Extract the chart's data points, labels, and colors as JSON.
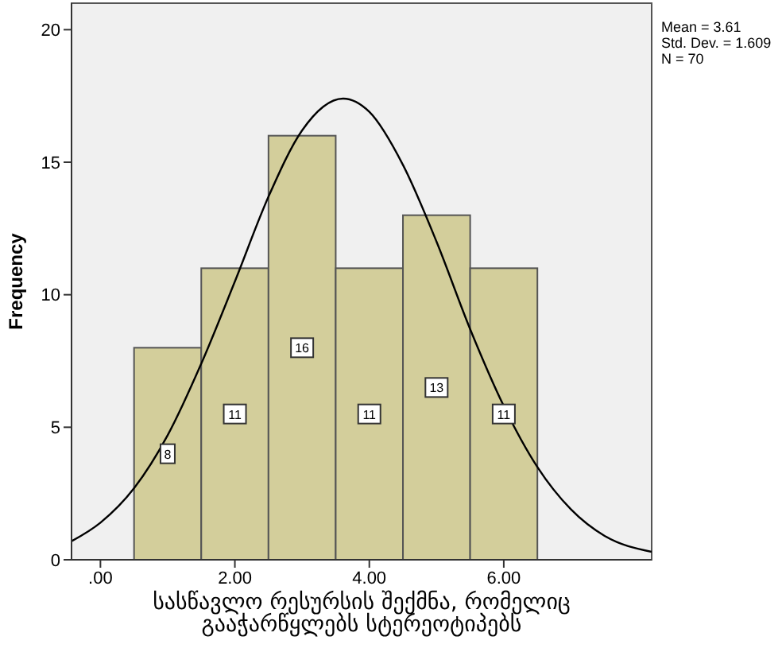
{
  "chart_data": {
    "type": "histogram",
    "xlabel": "სასწავლო რესურსის შექმნა, რომელიც გააჭარწყლებს სტერეოტიპებს",
    "ylabel": "Frequency",
    "bins": [
      0.5,
      1.5,
      2.5,
      3.5,
      4.5,
      5.5,
      6.5
    ],
    "values": [
      8,
      11,
      16,
      11,
      13,
      11
    ],
    "color": "#d3ce9b",
    "value_labels": [
      "8",
      "11",
      "16",
      "11",
      "13",
      "11"
    ],
    "series": [
      {
        "type": "line",
        "color": "#000000",
        "x": [
          -0.43,
          0,
          0.5,
          1,
          1.5,
          2,
          2.5,
          3,
          3.61,
          4,
          4.5,
          5,
          5.5,
          6,
          6.5,
          7,
          7.5,
          8.2
        ],
        "values": [
          0.7,
          1.4,
          2.7,
          4.7,
          7.4,
          10.5,
          13.7,
          16.2,
          17.4,
          16.9,
          14.9,
          12.0,
          8.7,
          5.8,
          3.5,
          1.9,
          0.9,
          0.3
        ]
      }
    ],
    "marker": "none",
    "xlim": [
      -0.43,
      8.2
    ],
    "xticks": [
      {
        "value": 0,
        "label": ".00"
      },
      {
        "value": 2,
        "label": "2.00"
      },
      {
        "value": 4,
        "label": "4.00"
      },
      {
        "value": 6,
        "label": "6.00"
      }
    ],
    "ylim": [
      0,
      21
    ],
    "yticks": [
      0,
      5,
      10,
      15,
      20
    ],
    "grid": false,
    "legend": false,
    "annotations": [
      "Mean = 3.61",
      "Std. Dev. = 1.609",
      "N = 70"
    ]
  }
}
